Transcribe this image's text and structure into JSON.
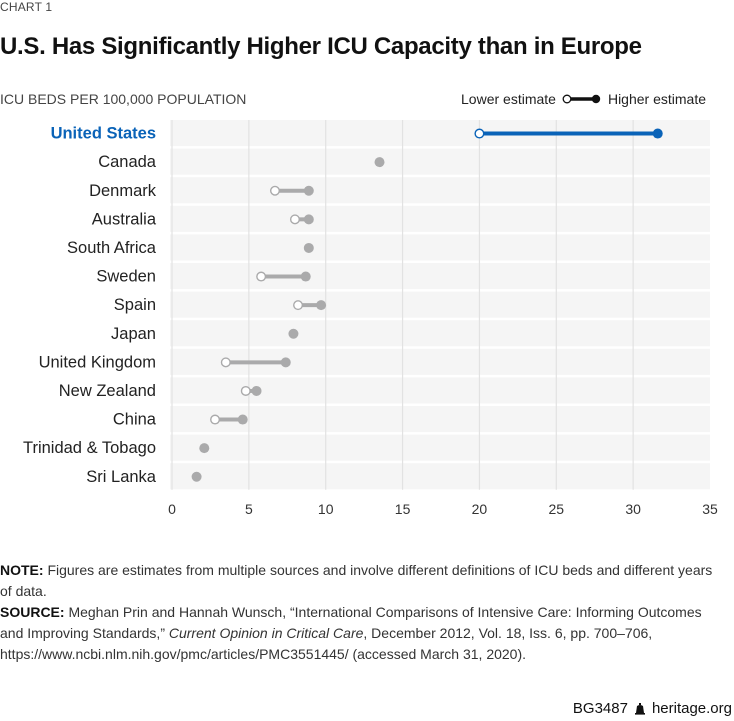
{
  "header": {
    "eyebrow": "CHART 1",
    "title": "U.S. Has Significantly Higher ICU Capacity than in Europe",
    "unit_label": "ICU BEDS PER 100,000 POPULATION",
    "legend_lower": "Lower estimate",
    "legend_higher": "Higher estimate"
  },
  "colors": {
    "highlight": "#0a63b8",
    "default_series": "#aaaaab",
    "plot_background": "#f5f5f5",
    "gridline": "#e2e2e2"
  },
  "chart_data": {
    "type": "dumbbell",
    "title": "U.S. Has Significantly Higher ICU Capacity than in Europe",
    "xlabel": "ICU BEDS PER 100,000 POPULATION",
    "ylabel": "",
    "xlim": [
      0,
      35
    ],
    "xticks": [
      0,
      5,
      10,
      15,
      20,
      25,
      30,
      35
    ],
    "xtick_labels": [
      "0",
      "5",
      "10",
      "15",
      "20",
      "25",
      "30",
      "35"
    ],
    "grid": "vertical",
    "legend": "top-right",
    "series": [
      {
        "name": "Lower estimate",
        "marker": "open-circle"
      },
      {
        "name": "Higher estimate",
        "marker": "filled-circle"
      }
    ],
    "categories": [
      "United States",
      "Canada",
      "Denmark",
      "Australia",
      "South Africa",
      "Sweden",
      "Spain",
      "Japan",
      "United Kingdom",
      "New Zealand",
      "China",
      "Trinidad & Tobago",
      "Sri Lanka"
    ],
    "rows": [
      {
        "country": "United States",
        "lower": 20.0,
        "higher": 31.6,
        "highlight": true
      },
      {
        "country": "Canada",
        "lower": null,
        "higher": 13.5,
        "highlight": false
      },
      {
        "country": "Denmark",
        "lower": 6.7,
        "higher": 8.9,
        "highlight": false
      },
      {
        "country": "Australia",
        "lower": 8.0,
        "higher": 8.9,
        "highlight": false
      },
      {
        "country": "South Africa",
        "lower": null,
        "higher": 8.9,
        "highlight": false
      },
      {
        "country": "Sweden",
        "lower": 5.8,
        "higher": 8.7,
        "highlight": false
      },
      {
        "country": "Spain",
        "lower": 8.2,
        "higher": 9.7,
        "highlight": false
      },
      {
        "country": "Japan",
        "lower": null,
        "higher": 7.9,
        "highlight": false
      },
      {
        "country": "United Kingdom",
        "lower": 3.5,
        "higher": 7.4,
        "highlight": false
      },
      {
        "country": "New Zealand",
        "lower": 4.8,
        "higher": 5.5,
        "highlight": false
      },
      {
        "country": "China",
        "lower": 2.8,
        "higher": 4.6,
        "highlight": false
      },
      {
        "country": "Trinidad & Tobago",
        "lower": null,
        "higher": 2.1,
        "highlight": false
      },
      {
        "country": "Sri Lanka",
        "lower": null,
        "higher": 1.6,
        "highlight": false
      }
    ]
  },
  "notes": {
    "note_label": "NOTE:",
    "note_text": " Figures are estimates from multiple sources and involve different definitions of ICU beds and different years of data.",
    "source_label": "SOURCE:",
    "source_text_1": " Meghan Prin and Hannah Wunsch, “International Comparisons of Intensive Care: Informing Outcomes and Improving Standards,” ",
    "source_journal": "Current Opinion in Critical Care",
    "source_text_2": ", December 2012, Vol. 18, Iss. 6, pp. 700–706, https://www.ncbi.nlm.nih.gov/pmc/articles/PMC3551445/ (accessed March 31, 2020)."
  },
  "footer": {
    "code": "BG3487",
    "icon": "liberty-bell-icon",
    "site": "heritage.org"
  }
}
